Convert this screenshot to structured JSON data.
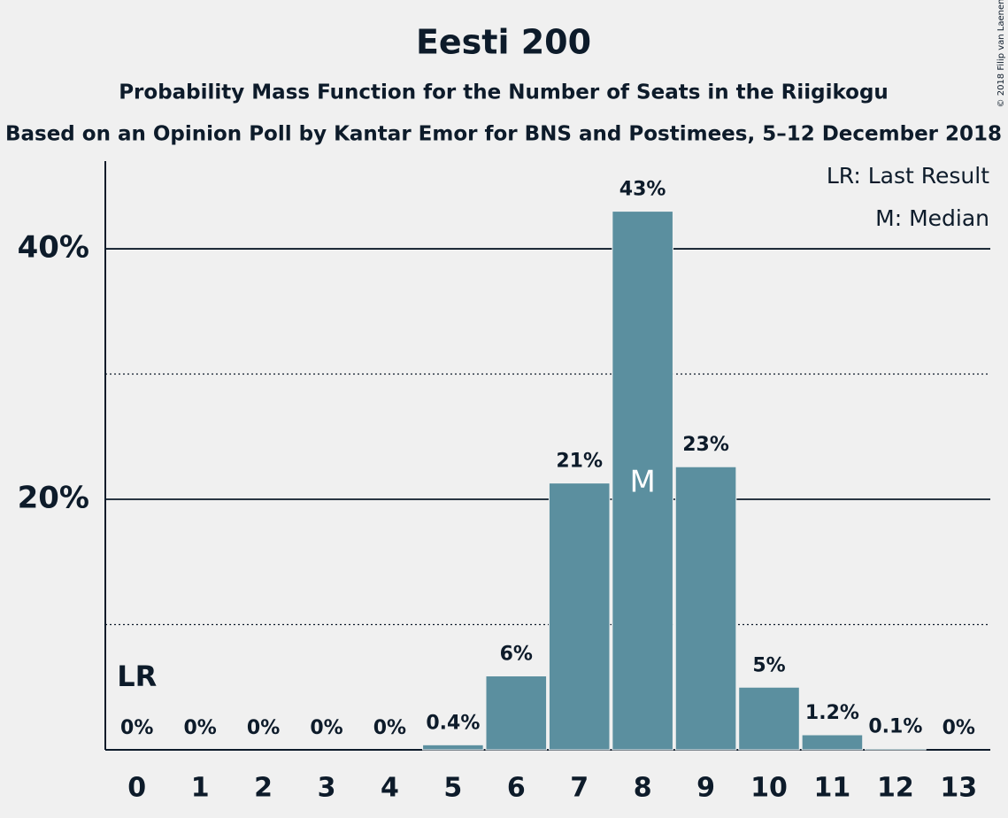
{
  "chart_data": {
    "type": "bar",
    "title": "Eesti 200",
    "subtitle": "Probability Mass Function for the Number of Seats in the Riigikogu",
    "subtitle2": "Based on an Opinion Poll by Kantar Emor for BNS and Postimees, 5–12 December 2018",
    "categories": [
      "0",
      "1",
      "2",
      "3",
      "4",
      "5",
      "6",
      "7",
      "8",
      "9",
      "10",
      "11",
      "12",
      "13"
    ],
    "values": [
      0,
      0,
      0,
      0,
      0,
      0.4,
      5.9,
      21.3,
      43,
      22.6,
      5,
      1.2,
      0.1,
      0
    ],
    "value_labels": [
      "0%",
      "0%",
      "0%",
      "0%",
      "0%",
      "0.4%",
      "6%",
      "21%",
      "43%",
      "23%",
      "5%",
      "1.2%",
      "0.1%",
      "0%"
    ],
    "color": "#5b8f9f",
    "ylim": [
      0,
      47
    ],
    "yticks": [
      {
        "value": 20,
        "label": "20%"
      },
      {
        "value": 40,
        "label": "40%"
      }
    ],
    "yminor": [
      10,
      30
    ],
    "grid": true,
    "last_result": {
      "label": "LR",
      "category": 0
    },
    "median": {
      "label": "M",
      "category": 8
    },
    "legend": [
      "LR: Last Result",
      "M: Median"
    ],
    "copyright": "© 2018 Filip van Laenen"
  }
}
